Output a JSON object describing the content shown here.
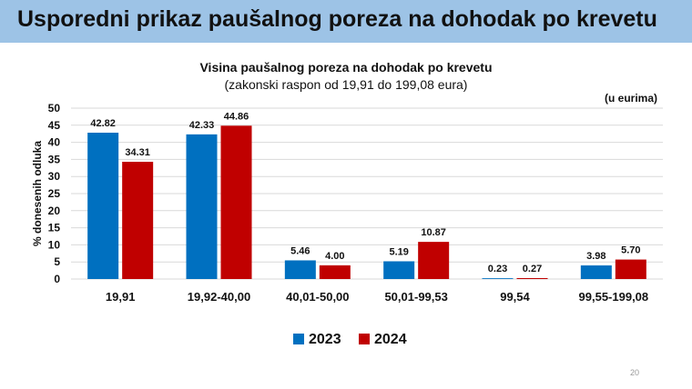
{
  "header": {
    "title": "Usporedni prikaz paušalnog poreza na dohodak po krevetu"
  },
  "page_number": "20",
  "chart_data": {
    "type": "bar",
    "title": "Visina paušalnog poreza na dohodak po krevetu",
    "subtitle": "(zakonski raspon od 19,91 do 199,08 eura)",
    "unit_note": "(u eurima)",
    "ylabel": "% donesenih odluka",
    "xlabel": "",
    "ylim": [
      0,
      50
    ],
    "yticks": [
      0,
      5,
      10,
      15,
      20,
      25,
      30,
      35,
      40,
      45,
      50
    ],
    "grid": true,
    "legend_position": "bottom",
    "categories": [
      "19,91",
      "19,92-40,00",
      "40,01-50,00",
      "50,01-99,53",
      "99,54",
      "99,55-199,08"
    ],
    "series": [
      {
        "name": "2023",
        "color": "#0070c0",
        "values": [
          42.82,
          42.33,
          5.46,
          5.19,
          0.23,
          3.98
        ],
        "labels": [
          "42.82",
          "42.33",
          "5.46",
          "5.19",
          "0.23",
          "3.98"
        ]
      },
      {
        "name": "2024",
        "color": "#c00000",
        "values": [
          34.31,
          44.86,
          4.0,
          10.87,
          0.27,
          5.7
        ],
        "labels": [
          "34.31",
          "44.86",
          "4.00",
          "10.87",
          "0.27",
          "5.70"
        ]
      }
    ]
  }
}
